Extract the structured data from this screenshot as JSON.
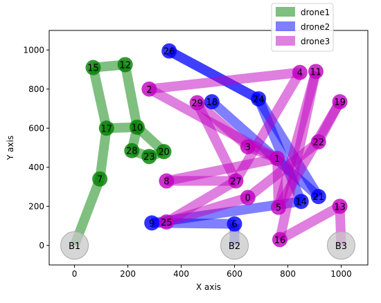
{
  "chart_data": {
    "type": "line",
    "title": "",
    "xlabel": "X axis",
    "ylabel": "Y axis",
    "xlim": [
      -95,
      1100
    ],
    "ylim": [
      -100,
      1100
    ],
    "xticks": [
      0,
      200,
      400,
      600,
      800,
      1000
    ],
    "yticks": [
      0,
      200,
      400,
      600,
      800,
      1000
    ],
    "grid": false,
    "legend_position": "top-right",
    "bases": [
      {
        "label": "B1",
        "x": 0,
        "y": 0
      },
      {
        "label": "B2",
        "x": 600,
        "y": 0
      },
      {
        "label": "B3",
        "x": 1000,
        "y": 0
      }
    ],
    "waypoints": [
      {
        "id": "0",
        "x": 650,
        "y": 245
      },
      {
        "id": "1",
        "x": 760,
        "y": 445
      },
      {
        "id": "2",
        "x": 280,
        "y": 800
      },
      {
        "id": "3",
        "x": 650,
        "y": 505
      },
      {
        "id": "4",
        "x": 845,
        "y": 885
      },
      {
        "id": "5",
        "x": 765,
        "y": 195
      },
      {
        "id": "6",
        "x": 600,
        "y": 110
      },
      {
        "id": "7",
        "x": 95,
        "y": 340
      },
      {
        "id": "8",
        "x": 345,
        "y": 330
      },
      {
        "id": "9",
        "x": 290,
        "y": 115
      },
      {
        "id": "10",
        "x": 235,
        "y": 605
      },
      {
        "id": "11",
        "x": 905,
        "y": 890
      },
      {
        "id": "12",
        "x": 190,
        "y": 925
      },
      {
        "id": "13",
        "x": 995,
        "y": 200
      },
      {
        "id": "14",
        "x": 850,
        "y": 225
      },
      {
        "id": "15",
        "x": 70,
        "y": 910
      },
      {
        "id": "16",
        "x": 770,
        "y": 30
      },
      {
        "id": "17",
        "x": 120,
        "y": 600
      },
      {
        "id": "18",
        "x": 515,
        "y": 735
      },
      {
        "id": "19",
        "x": 995,
        "y": 735
      },
      {
        "id": "20",
        "x": 335,
        "y": 480
      },
      {
        "id": "21",
        "x": 915,
        "y": 250
      },
      {
        "id": "22",
        "x": 915,
        "y": 530
      },
      {
        "id": "23",
        "x": 280,
        "y": 455
      },
      {
        "id": "24",
        "x": 690,
        "y": 750
      },
      {
        "id": "25",
        "x": 345,
        "y": 120
      },
      {
        "id": "26",
        "x": 355,
        "y": 995
      },
      {
        "id": "27",
        "x": 605,
        "y": 330
      },
      {
        "id": "28",
        "x": 215,
        "y": 485
      },
      {
        "id": "29",
        "x": 460,
        "y": 730
      }
    ],
    "series": [
      {
        "name": "drone1",
        "color": "#008000",
        "path": [
          "B1",
          "7",
          "17",
          "15",
          "12",
          "10",
          "28",
          "23",
          "20",
          "10",
          "17"
        ]
      },
      {
        "name": "drone2",
        "color": "#0000ff",
        "path": [
          "B2",
          "6",
          "9",
          "14",
          "24",
          "26",
          "24",
          "21",
          "18"
        ]
      },
      {
        "name": "drone3",
        "color": "#bf00bf",
        "path": [
          "B3",
          "13",
          "16",
          "11",
          "5",
          "19",
          "22",
          "0",
          "25",
          "27",
          "4",
          "2",
          "1",
          "3",
          "29",
          "27",
          "8",
          "1",
          "5"
        ]
      }
    ]
  }
}
